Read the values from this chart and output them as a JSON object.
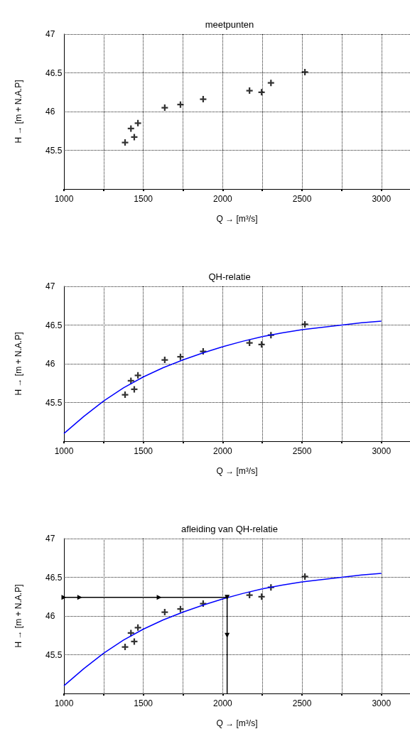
{
  "chart_data": [
    {
      "type": "scatter",
      "title": "meetpunten",
      "xlabel": "Q → [m³/s]",
      "ylabel": "H → [m + N.A.P]",
      "xlim": [
        1000,
        3180
      ],
      "ylim": [
        45,
        47
      ],
      "xticks": [
        1000,
        {
          "value": 1250,
          "label": null
        },
        1500,
        {
          "value": 1750,
          "label": null
        },
        2000,
        {
          "value": 2250,
          "label": null
        },
        2500,
        {
          "value": 2750,
          "label": null
        },
        3000
      ],
      "yticks": [
        45.5,
        46,
        46.5,
        47
      ],
      "grid": true,
      "series": [
        {
          "color": "#000000",
          "marker": "cross",
          "x": [
            1385,
            1422,
            1443,
            1466,
            1635,
            1734,
            1877,
            2169,
            2245,
            2304,
            2518
          ],
          "values": [
            45.6,
            45.78,
            45.67,
            45.85,
            46.05,
            46.09,
            46.16,
            46.27,
            46.25,
            46.37,
            46.51
          ]
        }
      ]
    },
    {
      "type": "scatter",
      "title": "QH-relatie",
      "xlabel": "Q → [m³/s]",
      "ylabel": "H → [m + N.A.P]",
      "xlim": [
        1000,
        3180
      ],
      "ylim": [
        45,
        47
      ],
      "xticks": [
        1000,
        {
          "value": 1250,
          "label": null
        },
        1500,
        {
          "value": 1750,
          "label": null
        },
        2000,
        {
          "value": 2250,
          "label": null
        },
        2500,
        {
          "value": 2750,
          "label": null
        },
        3000
      ],
      "yticks": [
        45.5,
        46,
        46.5,
        47
      ],
      "grid": true,
      "series": [
        {
          "color": "#000000",
          "marker": "cross",
          "x": [
            1385,
            1422,
            1443,
            1466,
            1635,
            1734,
            1877,
            2169,
            2245,
            2304,
            2518
          ],
          "values": [
            45.6,
            45.78,
            45.67,
            45.85,
            46.05,
            46.09,
            46.16,
            46.27,
            46.25,
            46.37,
            46.51
          ]
        },
        {
          "type": "line",
          "color": "#0000ff",
          "marker": "none",
          "x": [
            1000,
            1125,
            1250,
            1375,
            1500,
            1625,
            1750,
            1875,
            2000,
            2125,
            2250,
            2375,
            2500,
            2625,
            2750,
            2875,
            3000
          ],
          "values": [
            45.1,
            45.32,
            45.52,
            45.69,
            45.83,
            45.95,
            46.05,
            46.14,
            46.22,
            46.29,
            46.35,
            46.4,
            46.44,
            46.47,
            46.5,
            46.53,
            46.55
          ]
        }
      ]
    },
    {
      "type": "scatter",
      "title": "afleiding van QH-relatie",
      "xlabel": "Q → [m³/s]",
      "ylabel": "H → [m + N.A.P]",
      "xlim": [
        1000,
        3180
      ],
      "ylim": [
        45,
        47
      ],
      "xticks": [
        1000,
        {
          "value": 1250,
          "label": null
        },
        1500,
        {
          "value": 1750,
          "label": null
        },
        2000,
        {
          "value": 2250,
          "label": null
        },
        2500,
        {
          "value": 2750,
          "label": null
        },
        3000
      ],
      "yticks": [
        45.5,
        46,
        46.5,
        47
      ],
      "grid": true,
      "series": [
        {
          "color": "#000000",
          "marker": "cross",
          "x": [
            1385,
            1422,
            1443,
            1466,
            1635,
            1734,
            1877,
            2169,
            2245,
            2304,
            2518
          ],
          "values": [
            45.6,
            45.78,
            45.67,
            45.85,
            46.05,
            46.09,
            46.16,
            46.27,
            46.25,
            46.37,
            46.51
          ]
        },
        {
          "type": "line",
          "color": "#0000ff",
          "marker": "none",
          "x": [
            1000,
            1125,
            1250,
            1375,
            1500,
            1625,
            1750,
            1875,
            2000,
            2125,
            2250,
            2375,
            2500,
            2625,
            2750,
            2875,
            3000
          ],
          "values": [
            45.1,
            45.32,
            45.52,
            45.69,
            45.83,
            45.95,
            46.05,
            46.14,
            46.22,
            46.29,
            46.35,
            46.4,
            46.44,
            46.47,
            46.5,
            46.53,
            46.55
          ]
        },
        {
          "type": "line",
          "color": "#000000",
          "marker": "triangle",
          "x": [
            1000,
            1100,
            1600,
            2028,
            2028,
            2028
          ],
          "values": [
            46.24,
            46.24,
            46.24,
            46.24,
            45.75,
            45
          ]
        }
      ]
    }
  ]
}
